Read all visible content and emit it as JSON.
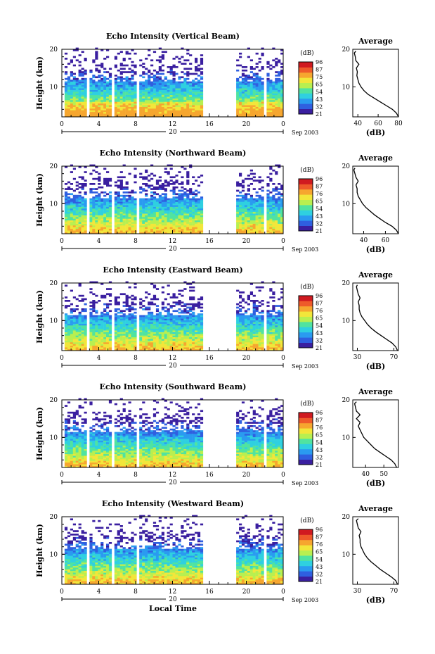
{
  "chart_data": [
    {
      "type": "heatmap",
      "title": "Echo Intensity (Vertical Beam)",
      "ylabel": "Height (km)",
      "xlim": [
        0,
        24
      ],
      "ylim": [
        2,
        20
      ],
      "xticks": [
        "0",
        "4",
        "8",
        "12",
        "16",
        "20",
        "0"
      ],
      "yticks": [
        "10",
        "20"
      ],
      "date_label": "20",
      "date_suffix": "Sep 2003",
      "colorbar": {
        "unit": "(dB)",
        "ticks": [
          "96",
          "87",
          "75",
          "65",
          "54",
          "43",
          "32",
          "21"
        ]
      },
      "data_gaps": [
        [
          15.2,
          18.8
        ]
      ],
      "profile": {
        "title": "Average",
        "xlabel": "(dB)",
        "xticks": [
          "40",
          "60",
          "80"
        ],
        "xlim": [
          35,
          80
        ],
        "heights": [
          2,
          3,
          4,
          5,
          6,
          7,
          8,
          9,
          10,
          11,
          12,
          13,
          14,
          15,
          16,
          17,
          18,
          19,
          19.5
        ],
        "values": [
          80,
          78,
          74,
          68,
          62,
          56,
          50,
          46,
          43,
          41,
          40,
          39,
          39.5,
          38.5,
          41,
          38,
          37.5,
          36.5,
          38
        ]
      }
    },
    {
      "type": "heatmap",
      "title": "Echo Intensity (Northward Beam)",
      "ylabel": "Height (km)",
      "xlim": [
        0,
        24
      ],
      "ylim": [
        2,
        20
      ],
      "xticks": [
        "0",
        "4",
        "8",
        "12",
        "16",
        "20",
        "0"
      ],
      "yticks": [
        "10",
        "20"
      ],
      "date_label": "20",
      "date_suffix": "Sep 2003",
      "colorbar": {
        "unit": "(dB)",
        "ticks": [
          "96",
          "87",
          "76",
          "65",
          "54",
          "43",
          "32",
          "21"
        ]
      },
      "data_gaps": [
        [
          15.2,
          18.8
        ]
      ],
      "profile": {
        "title": "Average",
        "xlabel": "(dB)",
        "xticks": [
          "40",
          "60"
        ],
        "xlim": [
          30,
          72
        ],
        "heights": [
          2,
          3,
          4,
          5,
          6,
          7,
          8,
          9,
          10,
          11,
          12,
          13,
          14,
          15,
          16,
          17,
          18,
          19,
          19.5
        ],
        "values": [
          72,
          70,
          66,
          60,
          55,
          50,
          46,
          42,
          39,
          37,
          35,
          34,
          34,
          33,
          35,
          33,
          32,
          31,
          32
        ]
      }
    },
    {
      "type": "heatmap",
      "title": "Echo Intensity (Eastward Beam)",
      "ylabel": "Height (km)",
      "xlim": [
        0,
        24
      ],
      "ylim": [
        2,
        20
      ],
      "xticks": [
        "0",
        "4",
        "8",
        "12",
        "16",
        "20",
        "0"
      ],
      "yticks": [
        "10",
        "20"
      ],
      "date_label": "20",
      "date_suffix": "Sep 2003",
      "colorbar": {
        "unit": "(dB)",
        "ticks": [
          "96",
          "87",
          "76",
          "65",
          "54",
          "43",
          "32",
          "21"
        ]
      },
      "data_gaps": [
        [
          15.2,
          18.8
        ]
      ],
      "profile": {
        "title": "Average",
        "xlabel": "(dB)",
        "xticks": [
          "30",
          "70"
        ],
        "xlim": [
          25,
          75
        ],
        "heights": [
          2,
          3,
          4,
          5,
          6,
          7,
          8,
          9,
          10,
          11,
          12,
          13,
          14,
          15,
          16,
          17,
          18,
          19,
          19.5
        ],
        "values": [
          74,
          72,
          68,
          62,
          56,
          50,
          45,
          41,
          38,
          35,
          33,
          32,
          32,
          31,
          33,
          31,
          30,
          29,
          30
        ]
      }
    },
    {
      "type": "heatmap",
      "title": "Echo Intensity (Southward Beam)",
      "ylabel": "Height (km)",
      "xlim": [
        0,
        24
      ],
      "ylim": [
        2,
        20
      ],
      "xticks": [
        "0",
        "4",
        "8",
        "12",
        "16",
        "20",
        "0"
      ],
      "yticks": [
        "10",
        "20"
      ],
      "date_label": "20",
      "date_suffix": "Sep 2003",
      "colorbar": {
        "unit": "(dB)",
        "ticks": [
          "96",
          "87",
          "76",
          "65",
          "54",
          "43",
          "32",
          "21"
        ]
      },
      "data_gaps": [
        [
          15.2,
          18.8
        ]
      ],
      "profile": {
        "title": "Average",
        "xlabel": "(dB)",
        "xticks": [
          "40",
          "50"
        ],
        "xlim": [
          33,
          58
        ],
        "heights": [
          2,
          3,
          4,
          5,
          6,
          7,
          8,
          9,
          10,
          11,
          12,
          13,
          14,
          15,
          16,
          17,
          18,
          19,
          19.5
        ],
        "values": [
          57,
          56,
          54,
          51,
          48,
          45,
          43,
          41,
          39,
          38,
          37,
          36,
          37,
          35,
          37,
          35,
          34.5,
          34,
          35
        ]
      }
    },
    {
      "type": "heatmap",
      "title": "Echo Intensity (Westward Beam)",
      "ylabel": "Height (km)",
      "xlabel": "Local Time",
      "xlim": [
        0,
        24
      ],
      "ylim": [
        2,
        20
      ],
      "xticks": [
        "0",
        "4",
        "8",
        "12",
        "16",
        "20",
        "0"
      ],
      "yticks": [
        "10",
        "20"
      ],
      "date_label": "20",
      "date_suffix": "Sep 2003",
      "colorbar": {
        "unit": "(dB)",
        "ticks": [
          "96",
          "87",
          "76",
          "65",
          "54",
          "43",
          "32",
          "21"
        ]
      },
      "data_gaps": [
        [
          15.2,
          18.8
        ]
      ],
      "profile": {
        "title": "Average",
        "xlabel": "(dB)",
        "xticks": [
          "30",
          "70"
        ],
        "xlim": [
          25,
          75
        ],
        "heights": [
          2,
          3,
          4,
          5,
          6,
          7,
          8,
          9,
          10,
          11,
          12,
          13,
          14,
          15,
          16,
          17,
          18,
          19,
          19.5
        ],
        "values": [
          74,
          72,
          67,
          61,
          55,
          50,
          45,
          41,
          38,
          36,
          34,
          33,
          33,
          32,
          34,
          31,
          30,
          29,
          31
        ]
      }
    }
  ],
  "colors": {
    "scale": [
      "#3a1fa0",
      "#2f5fe0",
      "#2a9bf0",
      "#2fd0e0",
      "#50e3a0",
      "#b8ef50",
      "#f2e63a",
      "#f6a62f",
      "#ee5a2a",
      "#d01a20"
    ]
  }
}
